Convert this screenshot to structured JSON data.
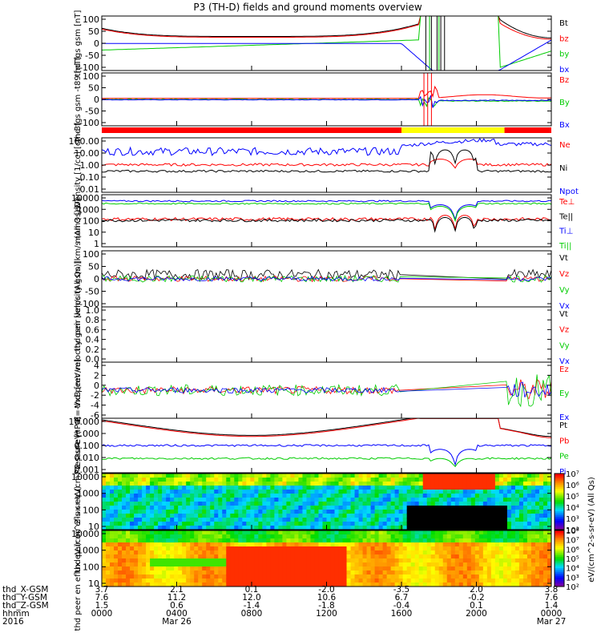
{
  "title": "P3 (TH-D) fields and ground moments overview",
  "colors": {
    "black": "#000000",
    "red": "#ff0000",
    "green": "#00cc00",
    "blue": "#0000ff",
    "yellow": "#ffff00"
  },
  "bar_segments": [
    {
      "from_hour": 0,
      "to_hour": 16,
      "color": "red"
    },
    {
      "from_hour": 16,
      "to_hour": 21.5,
      "color": "yellow"
    },
    {
      "from_hour": 21.5,
      "to_hour": 24,
      "color": "red"
    }
  ],
  "ephemeris": {
    "labels": [
      "thd_X-GSM",
      "thd_Y-GSM",
      "thd_Z-GSM",
      "hhmm",
      "2016"
    ],
    "columns": [
      {
        "x": "3.7",
        "y": "7.6",
        "z": "1.5",
        "time": "0000",
        "date": ""
      },
      {
        "x": "2.1",
        "y": "11.2",
        "z": "0.6",
        "time": "0400",
        "date": "Mar 26"
      },
      {
        "x": "0.1",
        "y": "12.0",
        "z": "-1.4",
        "time": "0800",
        "date": ""
      },
      {
        "x": "-2.0",
        "y": "10.6",
        "z": "-1.8",
        "time": "1200",
        "date": ""
      },
      {
        "x": "-3.5",
        "y": "6.7",
        "z": "-0.4",
        "time": "1600",
        "date": ""
      },
      {
        "x": "2.0",
        "y": "-0.2",
        "z": "0.1",
        "time": "2000",
        "date": ""
      },
      {
        "x": "3.8",
        "y": "7.6",
        "z": "1.4",
        "time": "0000",
        "date": "Mar 27"
      }
    ]
  },
  "chart_data": [
    {
      "type": "line",
      "ylabel": "thd fgs gsm [nT]",
      "ylim": [
        -100,
        100
      ],
      "ticks": [
        "100",
        "50",
        "0",
        "-50",
        "-100"
      ],
      "series": [
        {
          "name": "Bt",
          "color": "black"
        },
        {
          "name": "bz",
          "color": "red"
        },
        {
          "name": "by",
          "color": "green"
        },
        {
          "name": "bx",
          "color": "blue"
        }
      ]
    },
    {
      "type": "line",
      "ylabel": "thd fgs gsm -t89 [nT]",
      "ylim": [
        -130,
        130
      ],
      "ticks": [
        "100",
        "50",
        "0",
        "-50",
        "-100"
      ],
      "series": [
        {
          "name": "Bz",
          "color": "red"
        },
        {
          "name": "By",
          "color": "green"
        },
        {
          "name": "Bx",
          "color": "blue"
        }
      ]
    },
    {
      "type": "line",
      "ylabel": "Density [1/cc] [cm-3]",
      "scale": "log",
      "ticks": [
        "100.00",
        "10.00",
        "1.00",
        "0.10",
        "0.01"
      ],
      "series": [
        {
          "name": "Ne",
          "color": "red"
        },
        {
          "name": "Ni",
          "color": "black"
        },
        {
          "name": "Npot",
          "color": "blue"
        }
      ]
    },
    {
      "type": "line",
      "ylabel": "mom3 [eV]",
      "scale": "log",
      "ticks": [
        "10000",
        "1000",
        "100",
        "10",
        "1"
      ],
      "series": [
        {
          "name": "Te⊥",
          "color": "red"
        },
        {
          "name": "Te||",
          "color": "black"
        },
        {
          "name": "Ti⊥",
          "color": "blue"
        },
        {
          "name": "Ti||",
          "color": "green"
        }
      ]
    },
    {
      "type": "line",
      "ylabel": "thd peir velocity gsm [km/s (All Qs)]",
      "ylim": [
        -100,
        100
      ],
      "ticks": [
        "100",
        "50",
        "0",
        "-50",
        "-100"
      ],
      "series": [
        {
          "name": "Vt",
          "color": "black"
        },
        {
          "name": "Vz",
          "color": "red"
        },
        {
          "name": "Vy",
          "color": "green"
        },
        {
          "name": "Vx",
          "color": "blue"
        }
      ]
    },
    {
      "type": "line",
      "ylabel": "thd peer velocity gsm [km/s (All Qs)]",
      "ylim": [
        0,
        1
      ],
      "ticks": [
        "1.0",
        "0.8",
        "0.6",
        "0.4",
        "0.2",
        "0.0"
      ],
      "series": [
        {
          "name": "Vt",
          "color": "black"
        },
        {
          "name": "Vz",
          "color": "red"
        },
        {
          "name": "Vy",
          "color": "green"
        },
        {
          "name": "Vx",
          "color": "blue"
        }
      ]
    },
    {
      "type": "line",
      "ylabel": "E=-VxB [mV/m]",
      "ylim": [
        -6,
        6
      ],
      "ticks": [
        "4",
        "2",
        "0",
        "-2",
        "-4",
        "-6"
      ],
      "series": [
        {
          "name": "Ez",
          "color": "red"
        },
        {
          "name": "Ey",
          "color": "green"
        },
        {
          "name": "Ex",
          "color": "blue"
        }
      ]
    },
    {
      "type": "line",
      "ylabel": "Pressure [nPa]",
      "scale": "log",
      "ticks": [
        "10.000",
        "1.000",
        "0.100",
        "0.010",
        "0.001"
      ],
      "series": [
        {
          "name": "Pt",
          "color": "black"
        },
        {
          "name": "Pb",
          "color": "red"
        },
        {
          "name": "Pe",
          "color": "green"
        },
        {
          "name": "Pi",
          "color": "blue"
        }
      ]
    },
    {
      "type": "heatmap",
      "ylabel": "thd peir en eflux eV (cm^2-s-sr-eV)",
      "scale": "log",
      "ticks": [
        "10000",
        "1000",
        "100",
        "10"
      ],
      "colorbar": {
        "min_exp": 2,
        "max_exp": 7,
        "label": "eV/(cm^2-s-sr-eV) (All Qs)"
      }
    },
    {
      "type": "heatmap",
      "ylabel": "thd peer en eflux eV (cm^2-s-sr-eV)",
      "scale": "log",
      "ticks": [
        "10000",
        "1000",
        "100",
        "10"
      ],
      "colorbar": {
        "min_exp": 2,
        "max_exp": 8,
        "label": "eV/(cm^2-s-sr-eV) (All Qs)"
      }
    }
  ]
}
